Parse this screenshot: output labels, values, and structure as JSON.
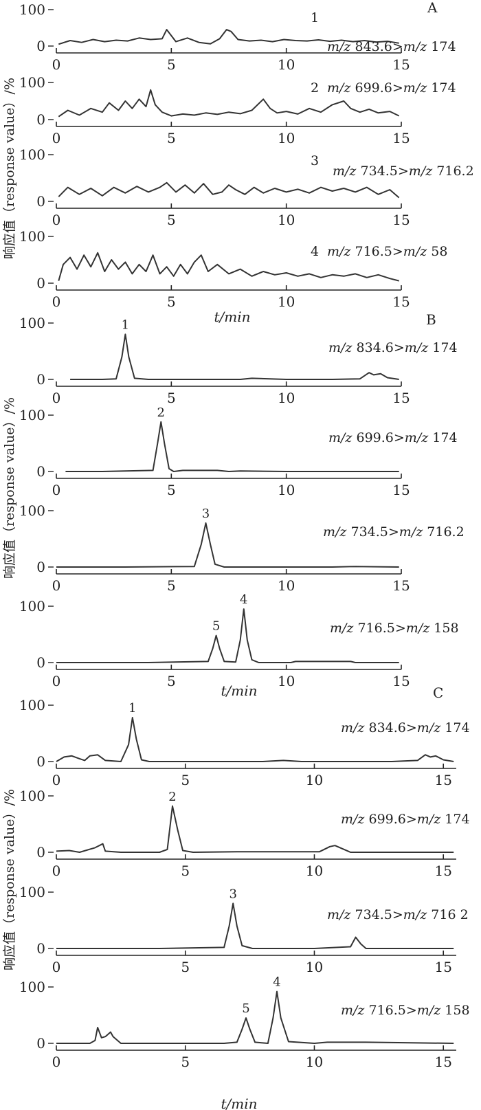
{
  "figure": {
    "section_letters": [
      "A",
      "B",
      "C"
    ],
    "y_axis_label": "响应值（response value）/%",
    "x_axis_label": "t/min"
  },
  "chart_data": [
    {
      "type": "line",
      "section": "A",
      "trace_label": "1",
      "mz_prefix": "m/z",
      "mz_from": "843.6",
      "mz_sep": ">",
      "mz_to_prefix": "m/z",
      "mz_to": "174",
      "xlim": [
        0,
        15
      ],
      "ylim": [
        0,
        100
      ],
      "xticks": [
        "0",
        "5",
        "10",
        "15"
      ],
      "yticks": [
        "0",
        "100"
      ],
      "x": [
        0.1,
        0.6,
        1.1,
        1.6,
        2.1,
        2.6,
        3.1,
        3.6,
        4.1,
        4.6,
        4.8,
        5.2,
        5.7,
        6.2,
        6.7,
        7.1,
        7.4,
        7.6,
        7.9,
        8.4,
        8.9,
        9.4,
        9.9,
        10.4,
        10.9,
        11.4,
        11.9,
        12.4,
        12.9,
        13.4,
        13.9,
        14.4,
        14.9
      ],
      "y": [
        5,
        15,
        10,
        18,
        12,
        16,
        14,
        22,
        18,
        20,
        45,
        12,
        22,
        10,
        6,
        20,
        45,
        40,
        18,
        14,
        16,
        12,
        18,
        15,
        14,
        17,
        13,
        16,
        12,
        15,
        11,
        13,
        8
      ],
      "peaks": []
    },
    {
      "type": "line",
      "section": "A",
      "trace_label": "2",
      "mz_prefix": "m/z",
      "mz_from": "699.6",
      "mz_sep": ">",
      "mz_to_prefix": "m/z",
      "mz_to": "174",
      "xlim": [
        0,
        15
      ],
      "ylim": [
        0,
        100
      ],
      "xticks": [
        "0",
        "5",
        "10",
        "15"
      ],
      "yticks": [
        "0",
        "100"
      ],
      "x": [
        0.1,
        0.5,
        1.0,
        1.5,
        2.0,
        2.3,
        2.7,
        3.0,
        3.3,
        3.6,
        3.9,
        4.1,
        4.3,
        4.6,
        5.0,
        5.5,
        6.0,
        6.5,
        7.0,
        7.5,
        8.0,
        8.5,
        9.0,
        9.3,
        9.6,
        10.0,
        10.5,
        11.0,
        11.5,
        12.0,
        12.5,
        12.8,
        13.2,
        13.6,
        14.0,
        14.5,
        14.9
      ],
      "y": [
        8,
        25,
        12,
        30,
        20,
        45,
        25,
        50,
        30,
        55,
        35,
        80,
        40,
        20,
        10,
        15,
        12,
        18,
        14,
        20,
        16,
        25,
        55,
        30,
        18,
        22,
        15,
        30,
        20,
        40,
        50,
        30,
        20,
        28,
        18,
        22,
        10
      ],
      "peaks": []
    },
    {
      "type": "line",
      "section": "A",
      "trace_label": "3",
      "mz_prefix": "m/z",
      "mz_from": "734.5",
      "mz_sep": ">",
      "mz_to_prefix": "m/z",
      "mz_to": "716.2",
      "xlim": [
        0,
        15
      ],
      "ylim": [
        0,
        100
      ],
      "xticks": [
        "0",
        "5",
        "10",
        "15"
      ],
      "yticks": [
        "0",
        "100"
      ],
      "x": [
        0.1,
        0.5,
        1.0,
        1.5,
        2.0,
        2.5,
        3.0,
        3.5,
        4.0,
        4.5,
        4.8,
        5.2,
        5.6,
        6.0,
        6.4,
        6.8,
        7.2,
        7.5,
        7.8,
        8.2,
        8.6,
        9.0,
        9.5,
        10.0,
        10.5,
        11.0,
        11.5,
        12.0,
        12.5,
        13.0,
        13.5,
        14.0,
        14.5,
        14.9
      ],
      "y": [
        10,
        30,
        15,
        28,
        12,
        30,
        18,
        32,
        20,
        30,
        40,
        20,
        35,
        18,
        38,
        15,
        20,
        35,
        25,
        15,
        30,
        18,
        28,
        20,
        26,
        18,
        30,
        22,
        28,
        20,
        30,
        15,
        25,
        8
      ],
      "peaks": []
    },
    {
      "type": "line",
      "section": "A",
      "trace_label": "4",
      "mz_prefix": "m/z",
      "mz_from": "716.5",
      "mz_sep": ">",
      "mz_to_prefix": "m/z",
      "mz_to": "58",
      "xlim": [
        0,
        15
      ],
      "ylim": [
        0,
        100
      ],
      "xticks": [
        "0",
        "5",
        "10",
        "15"
      ],
      "yticks": [
        "0",
        "100"
      ],
      "x": [
        0.1,
        0.3,
        0.6,
        0.9,
        1.2,
        1.5,
        1.8,
        2.1,
        2.4,
        2.7,
        3.0,
        3.3,
        3.6,
        3.9,
        4.2,
        4.5,
        4.8,
        5.1,
        5.4,
        5.7,
        6.0,
        6.3,
        6.6,
        7.0,
        7.5,
        8.0,
        8.5,
        9.0,
        9.5,
        10.0,
        10.5,
        11.0,
        11.5,
        12.0,
        12.5,
        13.0,
        13.5,
        14.0,
        14.5,
        14.9
      ],
      "y": [
        5,
        40,
        55,
        30,
        60,
        35,
        65,
        25,
        50,
        30,
        45,
        20,
        40,
        25,
        60,
        20,
        35,
        15,
        40,
        20,
        45,
        60,
        25,
        40,
        20,
        30,
        15,
        25,
        18,
        22,
        15,
        20,
        12,
        18,
        15,
        20,
        12,
        18,
        10,
        5
      ],
      "peaks": []
    },
    {
      "type": "line",
      "section": "B",
      "trace_label": "",
      "mz_prefix": "m/z",
      "mz_from": "834.6",
      "mz_sep": ">",
      "mz_to_prefix": "m/z",
      "mz_to": "174",
      "xlim": [
        0,
        15
      ],
      "ylim": [
        0,
        100
      ],
      "xticks": [
        "0",
        "5",
        "10",
        "15"
      ],
      "yticks": [
        "0",
        "100"
      ],
      "x": [
        0.6,
        2.0,
        2.6,
        2.85,
        3.0,
        3.15,
        3.4,
        4.0,
        6.0,
        8.0,
        8.5,
        10.0,
        12.0,
        13.2,
        13.6,
        13.8,
        14.1,
        14.4,
        14.9
      ],
      "y": [
        0,
        0,
        1,
        40,
        80,
        40,
        2,
        0,
        0,
        0,
        2,
        0,
        0,
        1,
        12,
        8,
        10,
        3,
        0
      ],
      "peaks": [
        {
          "label": "1",
          "x": 3.0,
          "y": 80
        }
      ]
    },
    {
      "type": "line",
      "section": "B",
      "trace_label": "",
      "mz_prefix": "m/z",
      "mz_from": "699.6",
      "mz_sep": ">",
      "mz_to_prefix": "m/z",
      "mz_to": "174",
      "xlim": [
        0,
        15
      ],
      "ylim": [
        0,
        100
      ],
      "xticks": [
        "0",
        "5",
        "10",
        "15"
      ],
      "yticks": [
        "0",
        "100"
      ],
      "x": [
        0.4,
        2.0,
        4.2,
        4.4,
        4.55,
        4.7,
        4.9,
        5.1,
        5.5,
        7.0,
        7.5,
        8.0,
        10.0,
        12.0,
        14.9
      ],
      "y": [
        0,
        0,
        2,
        50,
        88,
        50,
        5,
        0,
        2,
        2,
        0,
        1,
        0,
        0,
        0
      ],
      "peaks": [
        {
          "label": "2",
          "x": 4.55,
          "y": 88
        }
      ]
    },
    {
      "type": "line",
      "section": "B",
      "trace_label": "",
      "mz_prefix": "m/z",
      "mz_from": "734.5",
      "mz_sep": ">",
      "mz_to_prefix": "m/z",
      "mz_to": "716.2",
      "xlim": [
        0,
        15
      ],
      "ylim": [
        0,
        100
      ],
      "xticks": [
        "0",
        "5",
        "10",
        "15"
      ],
      "yticks": [
        "0",
        "100"
      ],
      "x": [
        0,
        3.0,
        6.0,
        6.3,
        6.5,
        6.7,
        6.9,
        7.3,
        9.0,
        12.0,
        13.0,
        14.9
      ],
      "y": [
        0,
        0,
        1,
        40,
        78,
        40,
        5,
        0,
        0,
        0,
        1,
        0
      ],
      "peaks": [
        {
          "label": "3",
          "x": 6.5,
          "y": 78
        }
      ]
    },
    {
      "type": "line",
      "section": "B",
      "trace_label": "",
      "mz_prefix": "m/z",
      "mz_from": "716.5",
      "mz_sep": ">",
      "mz_to_prefix": "m/z",
      "mz_to": "158",
      "xlim": [
        0,
        15
      ],
      "ylim": [
        0,
        100
      ],
      "xticks": [
        "0",
        "5",
        "10",
        "15"
      ],
      "yticks": [
        "0",
        "100"
      ],
      "x": [
        0,
        4.0,
        6.6,
        6.8,
        6.95,
        7.1,
        7.3,
        7.8,
        8.0,
        8.15,
        8.3,
        8.5,
        8.8,
        9.5,
        10.2,
        10.4,
        12.8,
        13.0,
        14.9
      ],
      "y": [
        0,
        0,
        2,
        25,
        48,
        25,
        2,
        1,
        40,
        95,
        40,
        5,
        0,
        0,
        0,
        2,
        2,
        0,
        0
      ],
      "peaks": [
        {
          "label": "5",
          "x": 6.95,
          "y": 48
        },
        {
          "label": "4",
          "x": 8.15,
          "y": 95
        }
      ]
    },
    {
      "type": "line",
      "section": "C",
      "trace_label": "",
      "mz_prefix": "m/z",
      "mz_from": "834.6",
      "mz_sep": ">",
      "mz_to_prefix": "m/z",
      "mz_to": "174",
      "xlim": [
        0,
        15.5
      ],
      "ylim": [
        0,
        100
      ],
      "xticks": [
        "0",
        "5",
        "10",
        "15"
      ],
      "yticks": [
        "0",
        "100"
      ],
      "x": [
        0,
        0.3,
        0.6,
        0.9,
        1.1,
        1.3,
        1.6,
        1.9,
        2.5,
        2.8,
        2.95,
        3.1,
        3.3,
        3.6,
        5.0,
        8.0,
        8.8,
        9.5,
        13.0,
        14.0,
        14.3,
        14.5,
        14.7,
        15.0,
        15.4
      ],
      "y": [
        0,
        8,
        10,
        5,
        2,
        10,
        12,
        2,
        0,
        30,
        78,
        40,
        3,
        0,
        0,
        0,
        2,
        0,
        0,
        2,
        12,
        8,
        10,
        3,
        0
      ],
      "peaks": [
        {
          "label": "1",
          "x": 2.95,
          "y": 78
        }
      ]
    },
    {
      "type": "line",
      "section": "C",
      "trace_label": "",
      "mz_prefix": "m/z",
      "mz_from": "699.6",
      "mz_sep": ">",
      "mz_to_prefix": "m/z",
      "mz_to": "174",
      "xlim": [
        0,
        15.5
      ],
      "ylim": [
        0,
        100
      ],
      "xticks": [
        "0",
        "5",
        "10",
        "15"
      ],
      "yticks": [
        "0",
        "100"
      ],
      "x": [
        0,
        0.5,
        0.9,
        1.5,
        1.8,
        1.9,
        2.5,
        4.0,
        4.3,
        4.5,
        4.7,
        4.9,
        5.3,
        7.0,
        10.2,
        10.6,
        10.8,
        11.0,
        11.4,
        13.0,
        15.4
      ],
      "y": [
        2,
        3,
        0,
        8,
        15,
        2,
        0,
        0,
        5,
        82,
        40,
        3,
        0,
        1,
        1,
        10,
        12,
        8,
        0,
        0,
        0
      ],
      "peaks": [
        {
          "label": "2",
          "x": 4.5,
          "y": 82
        }
      ]
    },
    {
      "type": "line",
      "section": "C",
      "trace_label": "",
      "mz_prefix": "m/z",
      "mz_from": "734.5",
      "mz_sep": ">",
      "mz_to_prefix": "m/z",
      "mz_to": "716 2",
      "xlim": [
        0,
        15.5
      ],
      "ylim": [
        0,
        100
      ],
      "xticks": [
        "0",
        "5",
        "10",
        "15"
      ],
      "yticks": [
        "0",
        "100"
      ],
      "x": [
        0,
        4.0,
        6.5,
        6.7,
        6.85,
        7.0,
        7.2,
        7.6,
        10.0,
        11.4,
        11.6,
        11.8,
        12.0,
        13.5,
        15.4
      ],
      "y": [
        0,
        0,
        2,
        40,
        80,
        40,
        5,
        0,
        0,
        3,
        20,
        8,
        0,
        0,
        0
      ],
      "peaks": [
        {
          "label": "3",
          "x": 6.85,
          "y": 80
        }
      ]
    },
    {
      "type": "line",
      "section": "C",
      "trace_label": "",
      "mz_prefix": "m/z",
      "mz_from": "716.5",
      "mz_sep": ">",
      "mz_to_prefix": "m/z",
      "mz_to": "158",
      "xlim": [
        0,
        15.5
      ],
      "ylim": [
        0,
        100
      ],
      "xticks": [
        "0",
        "5",
        "10",
        "15"
      ],
      "yticks": [
        "0",
        "100"
      ],
      "x": [
        0,
        1.3,
        1.5,
        1.6,
        1.75,
        1.9,
        2.1,
        2.2,
        2.5,
        6.5,
        7.0,
        7.2,
        7.35,
        7.5,
        7.7,
        8.2,
        8.4,
        8.55,
        8.7,
        9.0,
        10.0,
        10.5,
        12.0,
        15.4
      ],
      "y": [
        0,
        0,
        5,
        28,
        10,
        12,
        20,
        12,
        0,
        0,
        2,
        25,
        45,
        25,
        2,
        0,
        45,
        92,
        45,
        3,
        0,
        2,
        2,
        0
      ],
      "peaks": [
        {
          "label": "5",
          "x": 7.35,
          "y": 45
        },
        {
          "label": "4",
          "x": 8.55,
          "y": 92
        }
      ]
    }
  ]
}
